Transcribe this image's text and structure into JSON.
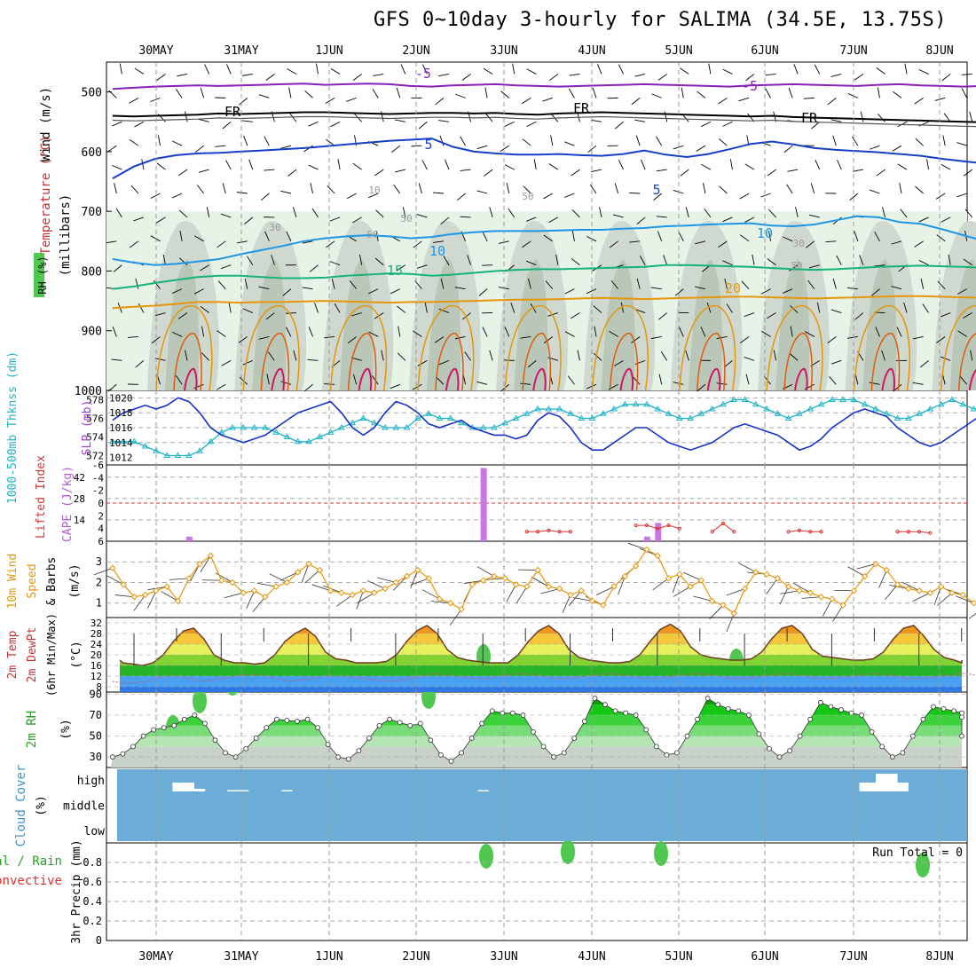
{
  "title": "GFS 0~10day 3-hourly for SALIMA (34.5E, 13.75S)",
  "dates": [
    "30MAY",
    "31MAY",
    "1JUN",
    "2JUN",
    "3JUN",
    "4JUN",
    "5JUN",
    "6JUN",
    "7JUN",
    "8JUN"
  ],
  "colors": {
    "t_minus5": "#8a1fc0",
    "t_fr": "#000000",
    "t_5": "#1440c8",
    "t_10": "#1e96e6",
    "t_15": "#14b478",
    "t_20": "#e6960a",
    "t_25": "#e05a0a",
    "t_30": "#d21466",
    "rh_light": "#e8f3e8",
    "rh_mid": "#cfd9cf",
    "rh_dark": "#b9c7b9",
    "rh_green": "#50c850",
    "slp": "#1432c8",
    "thick": "#1eb4c8",
    "cape": "#c878e6",
    "lifted": "#dc3232",
    "wind10": "#e6960a",
    "cloud_bg": "#6badd6",
    "cloud_white": "#ffffff"
  },
  "panels": {
    "p1": {
      "label_wind": "Wind (m/s)",
      "label_temp": "Temperature (°C)",
      "label_rh": "RH (%)",
      "label_mb": "(millibars)",
      "yticks": [
        "500",
        "600",
        "700",
        "800",
        "900",
        "1000"
      ]
    },
    "p2": {
      "label_thick": "1000-500mb Thknss (dm)",
      "label_slp": "SLP (mb)",
      "left_ticks": [
        "578",
        "576",
        "574",
        "572"
      ],
      "right_ticks": [
        "1020",
        "1018",
        "1016",
        "1014",
        "1012"
      ]
    },
    "p3": {
      "label_li": "Lifted Index",
      "label_cape": "CAPE (J/kg)",
      "left_ticks": [
        "-6",
        "-4",
        "-2",
        "0",
        "2",
        "4",
        "6"
      ],
      "right_ticks": [
        "42",
        "28",
        "14"
      ]
    },
    "p4": {
      "label_wind": "10m Wind",
      "label_speed": "Speed",
      "label_barbs": "& Barbs",
      "label_unit": "(m/s)",
      "yticks": [
        "3",
        "2",
        "1"
      ]
    },
    "p5": {
      "label_temp": "2m Temp",
      "label_dew": "2m DewPt",
      "label_mm": "(6hr Min/Max)",
      "label_unit": "(°C)",
      "yticks": [
        "32",
        "28",
        "24",
        "20",
        "16",
        "12",
        "8"
      ]
    },
    "p6": {
      "label_rh": "2m RH",
      "label_unit": "(%)",
      "yticks": [
        "90",
        "70",
        "50",
        "30"
      ]
    },
    "p7": {
      "label_cloud": "Cloud Cover",
      "label_unit": "(%)",
      "levels": [
        "high",
        "middle",
        "low"
      ]
    },
    "p8": {
      "label_total": "Total / Rain",
      "label_conv": "Convective",
      "label_precip": "3hr Precip (mm)",
      "yticks": [
        "0.8",
        "0.6",
        "0.4",
        "0.2",
        "0"
      ],
      "run_total": "Run Total = 0"
    }
  },
  "contour_labels": [
    "-5",
    "-5",
    "FR",
    "FR",
    "FR",
    "5",
    "5",
    "10",
    "10",
    "15",
    "20"
  ],
  "contour_label_rh": [
    "10",
    "30",
    "30",
    "50",
    "50",
    "50",
    "50"
  ],
  "chart_data": [
    {
      "type": "line",
      "name": "isotherms",
      "x_range": [
        0,
        80
      ],
      "y_range_mb": [
        450,
        1000
      ],
      "series": [
        {
          "name": "-5",
          "values_mb": [
            495,
            493,
            491,
            490,
            489,
            490,
            489,
            488,
            487,
            486,
            488,
            487,
            486,
            487,
            490,
            491,
            489,
            488,
            487,
            489,
            490,
            491,
            490,
            489,
            488,
            487,
            488,
            489,
            490,
            491,
            489,
            488,
            487,
            488,
            489,
            490,
            488,
            487,
            489,
            490,
            491,
            490
          ]
        },
        {
          "name": "FR",
          "values_mb": [
            540,
            541,
            540,
            539,
            538,
            536,
            537,
            536,
            535,
            534,
            534,
            535,
            536,
            537,
            536,
            535,
            535,
            536,
            535,
            537,
            538,
            536,
            535,
            534,
            535,
            536,
            537,
            538,
            539,
            540,
            541,
            540,
            542,
            543,
            544,
            545,
            546,
            547,
            548,
            549,
            550,
            551
          ]
        },
        {
          "name": "5",
          "values_mb": [
            645,
            625,
            612,
            606,
            603,
            602,
            600,
            598,
            596,
            594,
            591,
            588,
            585,
            582,
            580,
            578,
            592,
            600,
            603,
            605,
            605,
            604,
            606,
            607,
            604,
            598,
            605,
            609,
            604,
            596,
            587,
            583,
            588,
            594,
            597,
            599,
            601,
            604,
            607,
            612,
            616,
            620
          ]
        },
        {
          "name": "10",
          "values_mb": [
            780,
            786,
            790,
            788,
            784,
            780,
            772,
            765,
            758,
            750,
            745,
            742,
            740,
            742,
            745,
            743,
            738,
            735,
            733,
            733,
            733,
            732,
            731,
            731,
            729,
            728,
            725,
            724,
            722,
            721,
            720,
            724,
            725,
            722,
            715,
            708,
            710,
            718,
            721,
            730,
            740,
            750
          ]
        },
        {
          "name": "15",
          "values_mb": [
            830,
            826,
            820,
            815,
            810,
            808,
            808,
            810,
            812,
            812,
            811,
            808,
            806,
            804,
            805,
            808,
            806,
            803,
            800,
            798,
            797,
            797,
            796,
            795,
            794,
            793,
            790,
            790,
            791,
            792,
            793,
            795,
            797,
            798,
            797,
            795,
            793,
            792,
            791,
            792,
            793,
            795
          ]
        },
        {
          "name": "20",
          "values_mb": [
            862,
            860,
            858,
            855,
            852,
            852,
            853,
            852,
            852,
            851,
            850,
            851,
            852,
            853,
            852,
            852,
            851,
            850,
            849,
            848,
            848,
            847,
            846,
            845,
            846,
            847,
            846,
            845,
            844,
            843,
            843,
            844,
            845,
            846,
            845,
            844,
            843,
            842,
            842,
            843,
            844,
            845
          ]
        }
      ]
    },
    {
      "type": "line",
      "name": "slp_thickness",
      "x_range": [
        0,
        80
      ],
      "slp_range": [
        1011,
        1021
      ],
      "thick_range": [
        571,
        579
      ],
      "slp": [
        1017,
        1018,
        1018.5,
        1019,
        1018.5,
        1019,
        1020,
        1019.5,
        1018,
        1016,
        1015,
        1014.5,
        1014,
        1014.5,
        1015,
        1016,
        1017,
        1018,
        1018.5,
        1019,
        1019.5,
        1018,
        1016,
        1015,
        1016,
        1018,
        1019.5,
        1019,
        1018,
        1016.5,
        1016,
        1016.5,
        1017,
        1016,
        1015.5,
        1015,
        1015,
        1014.5,
        1015,
        1017,
        1018,
        1017.5,
        1016,
        1014,
        1013,
        1013,
        1014,
        1015,
        1016,
        1016,
        1015,
        1014,
        1013.5,
        1013,
        1013.5,
        1014,
        1015,
        1016,
        1016.5,
        1016,
        1015.5,
        1015,
        1014,
        1013,
        1013.5,
        1014.5,
        1016,
        1017,
        1018,
        1018.5,
        1018,
        1017.5,
        1016,
        1015,
        1014,
        1013.5,
        1014,
        1015,
        1016,
        1017,
        1018
      ],
      "thickness": [
        573.5,
        573.5,
        573.5,
        573,
        572.5,
        572,
        572,
        572,
        572.5,
        573.5,
        574.5,
        575,
        575,
        575,
        575,
        574.5,
        574,
        573.5,
        573.5,
        574,
        574.5,
        575,
        575.5,
        576,
        575.5,
        575,
        575,
        575,
        576,
        576.5,
        576,
        576,
        575.5,
        575,
        575,
        575,
        575.5,
        576,
        576.5,
        577,
        577,
        577,
        576.5,
        576,
        576,
        576.5,
        577,
        577.5,
        577.5,
        577.5,
        577,
        576.5,
        576,
        576,
        576.5,
        577,
        577.5,
        578,
        578,
        577.5,
        577,
        576.5,
        576,
        576.5,
        577,
        577.5,
        578,
        578,
        578,
        577.5,
        577,
        576.5,
        576,
        576,
        576.5,
        577,
        577.5,
        578,
        577.5,
        577,
        577
      ]
    },
    {
      "type": "bar",
      "name": "cape",
      "x_range": [
        0,
        80
      ],
      "y_range": [
        0,
        50
      ],
      "bars": [
        {
          "x": 7,
          "value": 3
        },
        {
          "x": 34,
          "value": 48
        },
        {
          "x": 49,
          "value": 3
        },
        {
          "x": 50,
          "value": 12
        }
      ]
    },
    {
      "type": "line",
      "name": "lifted_index",
      "x_range": [
        0,
        80
      ],
      "y_range": [
        -6,
        6
      ],
      "segments": [
        {
          "x": [
            38,
            39,
            40,
            41,
            42
          ],
          "values": [
            4.5,
            4.5,
            4.3,
            4.5,
            4.5
          ]
        },
        {
          "x": [
            48,
            49,
            50,
            51,
            52
          ],
          "values": [
            3.5,
            3.5,
            4,
            3.5,
            4
          ]
        },
        {
          "x": [
            55,
            56,
            57
          ],
          "values": [
            4.5,
            3.2,
            4.5
          ]
        },
        {
          "x": [
            62,
            63,
            64,
            65
          ],
          "values": [
            4.5,
            4.3,
            4.5,
            4.5
          ]
        },
        {
          "x": [
            72,
            73,
            74,
            75
          ],
          "values": [
            4.5,
            4.5,
            4.5,
            4.7
          ]
        }
      ]
    },
    {
      "type": "line",
      "name": "wind10_speed",
      "x_range": [
        0,
        80
      ],
      "y_range": [
        0.3,
        4
      ],
      "values": [
        2.7,
        1.9,
        1.3,
        1.4,
        1.6,
        1.8,
        1.1,
        2.2,
        2.9,
        3.3,
        2.1,
        2.0,
        1.5,
        1.6,
        1.3,
        1.8,
        2.0,
        2.5,
        2.9,
        2.6,
        1.6,
        1.5,
        1.4,
        1.6,
        1.5,
        1.7,
        2.0,
        2.3,
        2.6,
        2.2,
        1.2,
        1.0,
        0.7,
        1.9,
        2.1,
        2.3,
        2.2,
        1.9,
        1.8,
        2.6,
        1.8,
        1.7,
        1.4,
        1.6,
        1.1,
        0.9,
        1.8,
        2.3,
        2.8,
        3.6,
        3.3,
        2.2,
        2.4,
        1.8,
        2.1,
        1.1,
        0.9,
        0.5,
        1.7,
        2.5,
        2.4,
        2.2,
        1.8,
        1.6,
        1.5,
        1.3,
        1.2,
        0.9,
        1.6,
        2.3,
        2.9,
        2.6,
        1.9,
        1.7,
        1.6,
        1.5,
        1.8,
        1.5,
        1.4,
        1.0,
        0.8
      ]
    },
    {
      "type": "area",
      "name": "temp2m",
      "x_range": [
        0,
        80
      ],
      "y_range": [
        6,
        34
      ],
      "temp": [
        18,
        17,
        16.5,
        16,
        17,
        20,
        25,
        29,
        30,
        26,
        20,
        18,
        17,
        17,
        16.5,
        17,
        20,
        25,
        28,
        30,
        27,
        21,
        18.5,
        18,
        17,
        17,
        17,
        17.5,
        20,
        25,
        29,
        31,
        28,
        22,
        19,
        18,
        17.5,
        17,
        17,
        17,
        20,
        25,
        29,
        31,
        28,
        22,
        19,
        18,
        17.5,
        17,
        17,
        17.5,
        20,
        25,
        29.5,
        31.5,
        29,
        23,
        20,
        19,
        18.5,
        18,
        18,
        18.5,
        21,
        26,
        30,
        31,
        28,
        22,
        19.5,
        19,
        18.5,
        18,
        18,
        18.5,
        21,
        26,
        30,
        31,
        27,
        22,
        19,
        18,
        17,
        17,
        18
      ],
      "dewpt": [
        10,
        9.5,
        9.5,
        10,
        11,
        12,
        12,
        11,
        10,
        10.5,
        11,
        12,
        12.5,
        12.5,
        12,
        11,
        10,
        10.5,
        11,
        12,
        12,
        12,
        11.5,
        11,
        10.5,
        10,
        10.5,
        11,
        12,
        13,
        12.5,
        12,
        11.5,
        11,
        11,
        12,
        12.5,
        13,
        12.5,
        12,
        11,
        11,
        11.5,
        12,
        12.5,
        13,
        12.5,
        12,
        11,
        11,
        11.5,
        12,
        12.5,
        13,
        12.5,
        12,
        11,
        11,
        11.5,
        12,
        12.5,
        13,
        12.5,
        12,
        11,
        11,
        11.5,
        12,
        12.5,
        13,
        12.5,
        12,
        11,
        11,
        11.5,
        12,
        12.5,
        13,
        12.5,
        12
      ]
    },
    {
      "type": "area",
      "name": "rh2m",
      "x_range": [
        0,
        80
      ],
      "y_range": [
        20,
        92
      ],
      "values": [
        30,
        33,
        40,
        50,
        56,
        58,
        60,
        66,
        70,
        62,
        46,
        34,
        30,
        38,
        48,
        58,
        66,
        65,
        64,
        66,
        58,
        42,
        30,
        28,
        36,
        48,
        60,
        66,
        63,
        60,
        62,
        46,
        32,
        26,
        34,
        48,
        62,
        74,
        72,
        72,
        70,
        54,
        40,
        30,
        34,
        48,
        64,
        86,
        80,
        74,
        72,
        70,
        56,
        40,
        32,
        34,
        50,
        66,
        86,
        80,
        76,
        74,
        70,
        52,
        38,
        30,
        36,
        50,
        66,
        82,
        78,
        75,
        72,
        70,
        54,
        40,
        30,
        34,
        50,
        66,
        78,
        76,
        74,
        72,
        68,
        50
      ]
    },
    {
      "type": "bar",
      "name": "cloud_high",
      "x_range": [
        0,
        80
      ],
      "blocks": [
        {
          "x0": 5.5,
          "x1": 7.5,
          "level": "high",
          "height": 0.35
        },
        {
          "x0": 7.5,
          "x1": 8.5,
          "level": "high",
          "height": 0.1
        },
        {
          "x0": 10.5,
          "x1": 12.5,
          "level": "high",
          "height": 0.05
        },
        {
          "x0": 15.5,
          "x1": 16.5,
          "level": "high",
          "height": 0.05
        },
        {
          "x0": 33.5,
          "x1": 34.5,
          "level": "high",
          "height": 0.05
        },
        {
          "x0": 68.5,
          "x1": 70,
          "level": "high",
          "height": 0.35
        },
        {
          "x0": 70,
          "x1": 72,
          "level": "high",
          "height": 0.7
        },
        {
          "x0": 72,
          "x1": 73,
          "level": "high",
          "height": 0.35
        }
      ]
    }
  ]
}
